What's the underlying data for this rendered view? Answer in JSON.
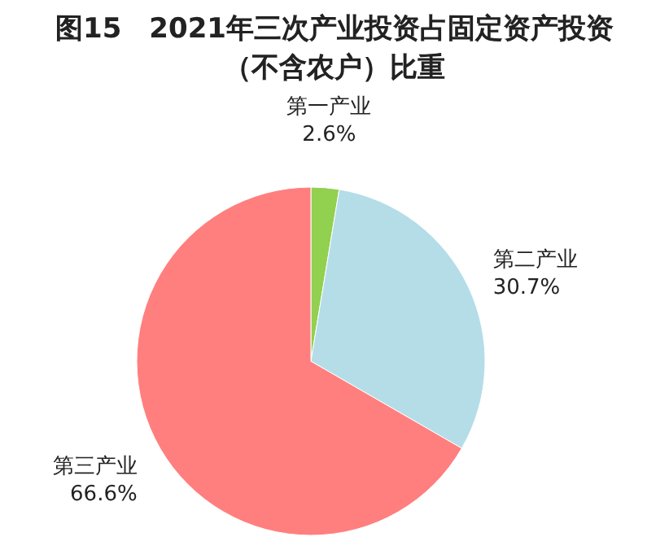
{
  "chart_data": {
    "type": "pie",
    "title": "图15　2021年三次产业投资占固定资产投资（不含农户）比重",
    "categories": [
      "第一产业",
      "第二产业",
      "第三产业"
    ],
    "values": [
      2.6,
      30.7,
      66.6
    ],
    "value_labels": [
      "2.6%",
      "30.7%",
      "66.6%"
    ],
    "colors": [
      "#92d050",
      "#b4dde8",
      "#ff7f7f"
    ]
  }
}
